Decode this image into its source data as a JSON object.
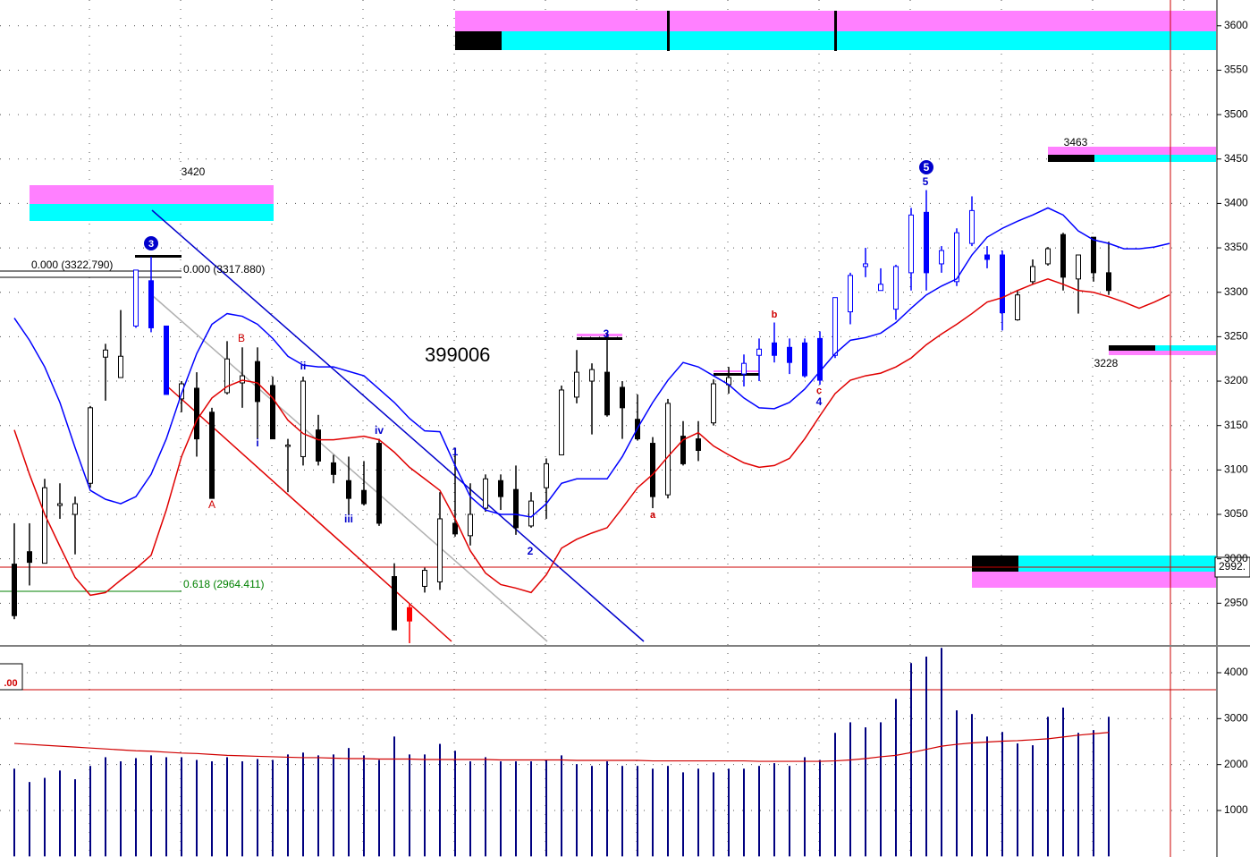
{
  "chart_data": [
    {
      "type": "candlestick",
      "title": "399006",
      "open": [
        2994,
        3008,
        2995,
        3060,
        3050,
        3085,
        3227,
        3204,
        3262,
        3313,
        3262,
        3180,
        3192,
        3165,
        3187,
        3198,
        3222,
        3195,
        3127,
        3115,
        3145,
        3108,
        3088,
        3077,
        3130,
        2980,
        2945,
        2969,
        2974,
        3040,
        3026,
        3057,
        3088,
        3078,
        3037,
        3080,
        3117,
        3182,
        3200,
        3210,
        3193,
        3157,
        3130,
        3072,
        3138,
        3135,
        3153,
        3196,
        3208,
        3229,
        3243,
        3238,
        3243,
        3248,
        3229,
        3278,
        3329,
        3302,
        3281,
        3322,
        3390,
        3332,
        3312,
        3355,
        3342,
        3342,
        3269,
        3312,
        3332,
        3365,
        3315,
        3362,
        3322
      ],
      "high": [
        3040,
        3040,
        3090,
        3085,
        3070,
        3172,
        3242,
        3280,
        3325,
        3340,
        3262,
        3200,
        3210,
        3170,
        3245,
        3238,
        3238,
        3205,
        3135,
        3205,
        3162,
        3117,
        3115,
        3110,
        3135,
        2995,
        2950,
        2990,
        3075,
        3125,
        3085,
        3095,
        3095,
        3105,
        3075,
        3113,
        3195,
        3235,
        3220,
        3255,
        3200,
        3185,
        3137,
        3180,
        3155,
        3155,
        3202,
        3216,
        3230,
        3248,
        3266,
        3248,
        3248,
        3256,
        3294,
        3322,
        3350,
        3327,
        3331,
        3395,
        3415,
        3352,
        3372,
        3408,
        3352,
        3347,
        3302,
        3337,
        3351,
        3367,
        3342,
        3362,
        3357
      ],
      "low": [
        2932,
        2970,
        2995,
        3045,
        3005,
        3080,
        3178,
        3204,
        3260,
        3255,
        3185,
        3165,
        3115,
        3068,
        3185,
        3170,
        3135,
        3135,
        3075,
        3105,
        3105,
        3085,
        3050,
        3060,
        3037,
        2920,
        2905,
        2962,
        2965,
        3025,
        3015,
        3053,
        3055,
        3027,
        3035,
        3045,
        3117,
        3175,
        3140,
        3160,
        3135,
        3133,
        3057,
        3068,
        3105,
        3110,
        3150,
        3186,
        3194,
        3200,
        3221,
        3208,
        3204,
        3196,
        3226,
        3264,
        3317,
        3302,
        3269,
        3302,
        3302,
        3322,
        3307,
        3352,
        3327,
        3257,
        3268,
        3309,
        3330,
        3302,
        3276,
        3312,
        3297
      ],
      "close": [
        2936,
        2996,
        3080,
        3062,
        3062,
        3170,
        3235,
        3228,
        3325,
        3260,
        3185,
        3197,
        3135,
        3068,
        3225,
        3206,
        3177,
        3135,
        3128,
        3200,
        3110,
        3095,
        3068,
        3062,
        3040,
        2920,
        2930,
        2987,
        3045,
        3028,
        3050,
        3090,
        3070,
        3035,
        3065,
        3107,
        3190,
        3210,
        3213,
        3162,
        3170,
        3135,
        3070,
        3175,
        3107,
        3122,
        3197,
        3204,
        3220,
        3236,
        3229,
        3221,
        3206,
        3201,
        3294,
        3319,
        3332,
        3309,
        3329,
        3387,
        3322,
        3347,
        3367,
        3392,
        3337,
        3277,
        3297,
        3329,
        3349,
        3317,
        3342,
        3322,
        3302
      ],
      "candle_colors": [
        "#000000",
        "#000000",
        "#000000",
        "#000000",
        "#000000",
        "#000000",
        "#000000",
        "#000000",
        "#0000ff",
        "#0000ff",
        "#0000ff",
        "#000000",
        "#000000",
        "#000000",
        "#000000",
        "#000000",
        "#000000",
        "#000000",
        "#000000",
        "#000000",
        "#000000",
        "#000000",
        "#000000",
        "#000000",
        "#000000",
        "#000000",
        "#ff0000",
        "#000000",
        "#000000",
        "#000000",
        "#000000",
        "#000000",
        "#000000",
        "#000000",
        "#000000",
        "#000000",
        "#000000",
        "#000000",
        "#000000",
        "#000000",
        "#000000",
        "#000000",
        "#000000",
        "#000000",
        "#000000",
        "#000000",
        "#000000",
        "#000000",
        "#0000ff",
        "#0000ff",
        "#0000ff",
        "#0000ff",
        "#0000ff",
        "#0000ff",
        "#0000ff",
        "#0000ff",
        "#0000ff",
        "#0000ff",
        "#0000ff",
        "#0000ff",
        "#0000ff",
        "#0000ff",
        "#0000ff",
        "#0000ff",
        "#0000ff",
        "#0000ff",
        "#000000",
        "#000000",
        "#000000",
        "#000000",
        "#000000",
        "#000000",
        "#000000"
      ],
      "lines": [
        {
          "color": "#0000ff",
          "values": [
            3271,
            3246,
            3216,
            3176,
            3125,
            3077,
            3067,
            3062,
            3070,
            3095,
            3135,
            3186,
            3231,
            3264,
            3276,
            3273,
            3264,
            3248,
            3228,
            3218,
            3216,
            3216,
            3211,
            3206,
            3191,
            3176,
            3158,
            3144,
            3143,
            3105,
            3070,
            3055,
            3050,
            3050,
            3047,
            3062,
            3085,
            3090,
            3090,
            3090,
            3115,
            3147,
            3176,
            3201,
            3221,
            3216,
            3206,
            3196,
            3181,
            3170,
            3169,
            3176,
            3191,
            3211,
            3231,
            3246,
            3249,
            3254,
            3266,
            3282,
            3297,
            3307,
            3315,
            3342,
            3362,
            3372,
            3380,
            3387,
            3395,
            3387,
            3369,
            3359,
            3355,
            3349,
            3349,
            3351,
            3355
          ]
        },
        {
          "color": "#e00000",
          "values": [
            3145,
            3095,
            3050,
            3014,
            2979,
            2959,
            2962,
            2976,
            2989,
            3004,
            3055,
            3115,
            3156,
            3181,
            3194,
            3201,
            3198,
            3181,
            3156,
            3141,
            3134,
            3134,
            3136,
            3138,
            3134,
            3120,
            3103,
            3090,
            3077,
            3045,
            3009,
            2984,
            2971,
            2967,
            2962,
            2982,
            3012,
            3022,
            3029,
            3035,
            3057,
            3080,
            3095,
            3115,
            3134,
            3142,
            3127,
            3117,
            3108,
            3103,
            3105,
            3113,
            3135,
            3161,
            3186,
            3201,
            3206,
            3209,
            3216,
            3226,
            3241,
            3253,
            3264,
            3276,
            3289,
            3294,
            3302,
            3309,
            3315,
            3309,
            3302,
            3300,
            3295,
            3289,
            3282,
            3289,
            3297
          ]
        }
      ],
      "ylim": [
        2904,
        3629
      ],
      "yticks": [
        2950,
        3000,
        3050,
        3100,
        3150,
        3200,
        3250,
        3300,
        3350,
        3400,
        3450,
        3500,
        3550,
        3600
      ],
      "grid": true,
      "annotations": [
        "3420",
        "3463",
        "3228",
        "0.000 (3322.790)",
        "0.000 (3317.880)",
        "0.618 (2964.411)",
        "A",
        "B",
        "i",
        "ii",
        "iii",
        "iv",
        "1",
        "2",
        "3",
        "a",
        "b",
        "c",
        "4",
        "5",
        "5",
        "3",
        "2992."
      ]
    },
    {
      "type": "bar",
      "values": [
        1910,
        1620,
        1710,
        1870,
        1680,
        1970,
        2160,
        2070,
        2140,
        2200,
        2160,
        2160,
        2100,
        2070,
        2160,
        2070,
        2120,
        2100,
        2220,
        2260,
        2200,
        2220,
        2360,
        2200,
        2100,
        2610,
        2220,
        2220,
        2450,
        2300,
        2070,
        2160,
        2070,
        2070,
        2070,
        2100,
        2200,
        2010,
        1970,
        2070,
        1970,
        1970,
        1910,
        1970,
        1830,
        1910,
        1830,
        1910,
        1910,
        1970,
        2030,
        1970,
        2160,
        2100,
        2690,
        2920,
        2810,
        2920,
        3430,
        4210,
        4350,
        4540,
        3180,
        3100,
        2610,
        2710,
        2460,
        2420,
        3040,
        3240,
        2690,
        2750,
        3040
      ],
      "color": "#000080",
      "line": {
        "color": "#d00000",
        "values": [
          2460,
          2440,
          2420,
          2400,
          2380,
          2360,
          2340,
          2320,
          2300,
          2290,
          2270,
          2250,
          2240,
          2220,
          2200,
          2190,
          2180,
          2170,
          2160,
          2150,
          2150,
          2140,
          2130,
          2130,
          2120,
          2120,
          2120,
          2110,
          2110,
          2110,
          2110,
          2110,
          2100,
          2100,
          2100,
          2100,
          2100,
          2090,
          2090,
          2090,
          2090,
          2090,
          2080,
          2080,
          2080,
          2080,
          2080,
          2080,
          2080,
          2070,
          2070,
          2070,
          2070,
          2070,
          2080,
          2100,
          2130,
          2170,
          2200,
          2260,
          2330,
          2400,
          2440,
          2470,
          2490,
          2510,
          2520,
          2540,
          2560,
          2600,
          2640,
          2670,
          2700
        ]
      },
      "ylim": [
        -13,
        4545
      ],
      "yticks": [
        1000,
        2000,
        3000,
        4000
      ],
      "grid": true,
      "annotations": [
        ".00"
      ]
    }
  ]
}
